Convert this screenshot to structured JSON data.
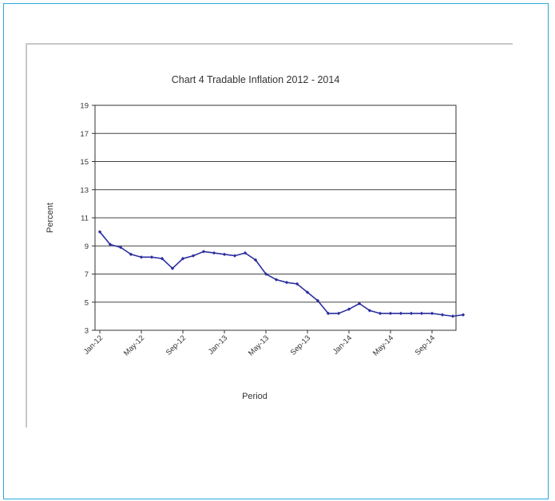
{
  "chart_data": {
    "type": "line",
    "title": "Chart 4 Tradable Inflation 2012 - 2014",
    "xlabel": "Period",
    "ylabel": "Percent",
    "ylim": [
      3,
      19
    ],
    "yticks": [
      3,
      5,
      7,
      9,
      11,
      13,
      15,
      17,
      19
    ],
    "x_tick_labels": [
      "Jan-12",
      "May-12",
      "Sep-12",
      "Jan-13",
      "May-13",
      "Sep-13",
      "Jan-14",
      "May-14",
      "Sep-14"
    ],
    "grid": true,
    "legend": "none",
    "series": [
      {
        "color": "#2b2f9e",
        "marker": "diamond",
        "x": [
          "Jan-12",
          "Feb-12",
          "Mar-12",
          "Apr-12",
          "May-12",
          "Jun-12",
          "Jul-12",
          "Aug-12",
          "Sep-12",
          "Oct-12",
          "Nov-12",
          "Dec-12",
          "Jan-13",
          "Feb-13",
          "Mar-13",
          "Apr-13",
          "May-13",
          "Jun-13",
          "Jul-13",
          "Aug-13",
          "Sep-13",
          "Oct-13",
          "Nov-13",
          "Dec-13",
          "Jan-14",
          "Feb-14",
          "Mar-14",
          "Apr-14",
          "May-14",
          "Jun-14",
          "Jul-14",
          "Aug-14",
          "Sep-14",
          "Oct-14",
          "Nov-14",
          "Dec-14"
        ],
        "values": [
          10.0,
          9.1,
          8.9,
          8.4,
          8.2,
          8.2,
          8.1,
          7.4,
          8.1,
          8.3,
          8.6,
          8.5,
          8.4,
          8.3,
          8.5,
          8.0,
          7.0,
          6.6,
          6.4,
          6.3,
          5.7,
          5.1,
          4.2,
          4.2,
          4.5,
          4.9,
          4.4,
          4.2,
          4.2,
          4.2,
          4.2,
          4.2,
          4.2,
          4.1,
          4.0,
          4.1
        ]
      }
    ]
  }
}
